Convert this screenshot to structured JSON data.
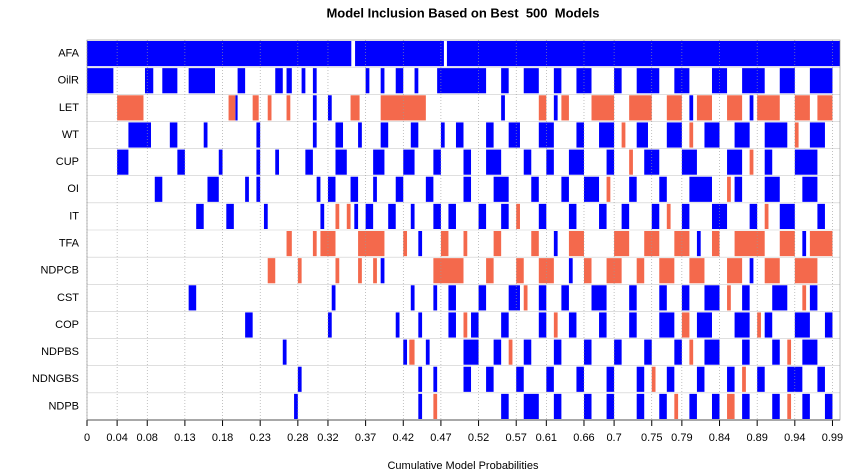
{
  "chart_data": {
    "type": "model-inclusion",
    "title": "Model Inclusion Based on Best  500  Models",
    "xlabel": "Cumulative Model Probabilities",
    "xlim": [
      0,
      1
    ],
    "xticks": [
      0,
      0.04,
      0.08,
      0.13,
      0.18,
      0.23,
      0.28,
      0.32,
      0.37,
      0.42,
      0.47,
      0.52,
      0.57,
      0.61,
      0.66,
      0.7,
      0.75,
      0.79,
      0.84,
      0.89,
      0.94,
      0.99
    ],
    "grid": true,
    "positive_color": "#0000ff",
    "negative_color": "#f4694c",
    "series": [
      {
        "name": "AFA",
        "positive": [
          [
            0,
            0.351
          ],
          [
            0.356,
            0.474
          ],
          [
            0.478,
            1
          ]
        ],
        "negative": []
      },
      {
        "name": "OilR",
        "positive": [
          [
            0,
            0.035
          ],
          [
            0.077,
            0.088
          ],
          [
            0.1,
            0.12
          ],
          [
            0.135,
            0.17
          ],
          [
            0.2,
            0.21
          ],
          [
            0.25,
            0.26
          ],
          [
            0.265,
            0.272
          ],
          [
            0.285,
            0.29
          ],
          [
            0.3,
            0.305
          ],
          [
            0.37,
            0.375
          ],
          [
            0.39,
            0.395
          ],
          [
            0.41,
            0.42
          ],
          [
            0.435,
            0.44
          ],
          [
            0.465,
            0.53
          ],
          [
            0.55,
            0.56
          ],
          [
            0.58,
            0.6
          ],
          [
            0.62,
            0.63
          ],
          [
            0.65,
            0.67
          ],
          [
            0.7,
            0.71
          ],
          [
            0.73,
            0.76
          ],
          [
            0.78,
            0.8
          ],
          [
            0.83,
            0.85
          ],
          [
            0.87,
            0.9
          ],
          [
            0.92,
            0.94
          ],
          [
            0.96,
            0.99
          ]
        ],
        "negative": []
      },
      {
        "name": "LET",
        "positive": [
          [
            0.197,
            0.2
          ],
          [
            0.3,
            0.305
          ],
          [
            0.32,
            0.325
          ],
          [
            0.55,
            0.555
          ],
          [
            0.62,
            0.625
          ],
          [
            0.8,
            0.805
          ],
          [
            0.88,
            0.885
          ]
        ],
        "negative": [
          [
            0.04,
            0.075
          ],
          [
            0.188,
            0.197
          ],
          [
            0.22,
            0.228
          ],
          [
            0.24,
            0.245
          ],
          [
            0.265,
            0.27
          ],
          [
            0.35,
            0.362
          ],
          [
            0.39,
            0.45
          ],
          [
            0.6,
            0.61
          ],
          [
            0.63,
            0.64
          ],
          [
            0.67,
            0.7
          ],
          [
            0.72,
            0.75
          ],
          [
            0.77,
            0.79
          ],
          [
            0.81,
            0.83
          ],
          [
            0.85,
            0.87
          ],
          [
            0.89,
            0.92
          ],
          [
            0.94,
            0.96
          ],
          [
            0.97,
            0.99
          ]
        ]
      },
      {
        "name": "WT",
        "positive": [
          [
            0.055,
            0.085
          ],
          [
            0.11,
            0.12
          ],
          [
            0.155,
            0.16
          ],
          [
            0.225,
            0.23
          ],
          [
            0.3,
            0.305
          ],
          [
            0.33,
            0.34
          ],
          [
            0.36,
            0.365
          ],
          [
            0.39,
            0.4
          ],
          [
            0.43,
            0.44
          ],
          [
            0.47,
            0.475
          ],
          [
            0.49,
            0.5
          ],
          [
            0.53,
            0.54
          ],
          [
            0.56,
            0.575
          ],
          [
            0.6,
            0.62
          ],
          [
            0.65,
            0.66
          ],
          [
            0.68,
            0.7
          ],
          [
            0.73,
            0.745
          ],
          [
            0.77,
            0.79
          ],
          [
            0.82,
            0.84
          ],
          [
            0.86,
            0.88
          ],
          [
            0.9,
            0.93
          ],
          [
            0.96,
            0.98
          ]
        ],
        "negative": [
          [
            0.71,
            0.715
          ],
          [
            0.8,
            0.805
          ],
          [
            0.94,
            0.945
          ]
        ]
      },
      {
        "name": "CUP",
        "positive": [
          [
            0.04,
            0.055
          ],
          [
            0.12,
            0.13
          ],
          [
            0.175,
            0.18
          ],
          [
            0.225,
            0.23
          ],
          [
            0.25,
            0.255
          ],
          [
            0.29,
            0.3
          ],
          [
            0.33,
            0.345
          ],
          [
            0.38,
            0.395
          ],
          [
            0.42,
            0.435
          ],
          [
            0.46,
            0.47
          ],
          [
            0.5,
            0.51
          ],
          [
            0.53,
            0.55
          ],
          [
            0.58,
            0.59
          ],
          [
            0.61,
            0.62
          ],
          [
            0.64,
            0.66
          ],
          [
            0.69,
            0.7
          ],
          [
            0.74,
            0.76
          ],
          [
            0.79,
            0.81
          ],
          [
            0.85,
            0.87
          ],
          [
            0.9,
            0.91
          ],
          [
            0.94,
            0.97
          ]
        ],
        "negative": [
          [
            0.72,
            0.725
          ],
          [
            0.88,
            0.885
          ]
        ]
      },
      {
        "name": "OI",
        "positive": [
          [
            0.09,
            0.1
          ],
          [
            0.16,
            0.175
          ],
          [
            0.21,
            0.215
          ],
          [
            0.225,
            0.23
          ],
          [
            0.305,
            0.31
          ],
          [
            0.32,
            0.33
          ],
          [
            0.35,
            0.36
          ],
          [
            0.38,
            0.385
          ],
          [
            0.41,
            0.42
          ],
          [
            0.45,
            0.46
          ],
          [
            0.5,
            0.51
          ],
          [
            0.54,
            0.56
          ],
          [
            0.59,
            0.6
          ],
          [
            0.63,
            0.64
          ],
          [
            0.66,
            0.68
          ],
          [
            0.72,
            0.73
          ],
          [
            0.76,
            0.77
          ],
          [
            0.8,
            0.83
          ],
          [
            0.86,
            0.87
          ],
          [
            0.9,
            0.92
          ],
          [
            0.95,
            0.97
          ]
        ],
        "negative": [
          [
            0.69,
            0.695
          ],
          [
            0.85,
            0.855
          ]
        ]
      },
      {
        "name": "IT",
        "positive": [
          [
            0.145,
            0.155
          ],
          [
            0.185,
            0.195
          ],
          [
            0.235,
            0.24
          ],
          [
            0.31,
            0.315
          ],
          [
            0.355,
            0.36
          ],
          [
            0.37,
            0.38
          ],
          [
            0.4,
            0.41
          ],
          [
            0.43,
            0.435
          ],
          [
            0.46,
            0.47
          ],
          [
            0.48,
            0.49
          ],
          [
            0.52,
            0.53
          ],
          [
            0.55,
            0.56
          ],
          [
            0.6,
            0.61
          ],
          [
            0.64,
            0.65
          ],
          [
            0.68,
            0.69
          ],
          [
            0.71,
            0.72
          ],
          [
            0.75,
            0.76
          ],
          [
            0.79,
            0.8
          ],
          [
            0.83,
            0.85
          ],
          [
            0.88,
            0.89
          ],
          [
            0.92,
            0.94
          ],
          [
            0.97,
            0.98
          ]
        ],
        "negative": [
          [
            0.33,
            0.335
          ],
          [
            0.345,
            0.35
          ],
          [
            0.57,
            0.575
          ],
          [
            0.77,
            0.775
          ],
          [
            0.9,
            0.905
          ]
        ]
      },
      {
        "name": "TFA",
        "positive": [
          [
            0.44,
            0.445
          ],
          [
            0.62,
            0.625
          ],
          [
            0.81,
            0.815
          ],
          [
            0.95,
            0.955
          ]
        ],
        "negative": [
          [
            0.265,
            0.272
          ],
          [
            0.3,
            0.305
          ],
          [
            0.31,
            0.33
          ],
          [
            0.36,
            0.395
          ],
          [
            0.42,
            0.425
          ],
          [
            0.47,
            0.48
          ],
          [
            0.5,
            0.505
          ],
          [
            0.54,
            0.55
          ],
          [
            0.59,
            0.6
          ],
          [
            0.64,
            0.66
          ],
          [
            0.7,
            0.72
          ],
          [
            0.74,
            0.76
          ],
          [
            0.78,
            0.8
          ],
          [
            0.83,
            0.84
          ],
          [
            0.86,
            0.9
          ],
          [
            0.92,
            0.94
          ],
          [
            0.96,
            0.99
          ]
        ]
      },
      {
        "name": "NDPCB",
        "positive": [
          [
            0.39,
            0.395
          ],
          [
            0.64,
            0.645
          ],
          [
            0.88,
            0.885
          ]
        ],
        "negative": [
          [
            0.24,
            0.25
          ],
          [
            0.28,
            0.285
          ],
          [
            0.33,
            0.335
          ],
          [
            0.36,
            0.365
          ],
          [
            0.38,
            0.385
          ],
          [
            0.46,
            0.5
          ],
          [
            0.53,
            0.54
          ],
          [
            0.57,
            0.58
          ],
          [
            0.6,
            0.62
          ],
          [
            0.66,
            0.67
          ],
          [
            0.69,
            0.71
          ],
          [
            0.73,
            0.74
          ],
          [
            0.76,
            0.78
          ],
          [
            0.8,
            0.82
          ],
          [
            0.85,
            0.87
          ],
          [
            0.9,
            0.92
          ],
          [
            0.94,
            0.97
          ]
        ]
      },
      {
        "name": "CST",
        "positive": [
          [
            0.135,
            0.145
          ],
          [
            0.325,
            0.33
          ],
          [
            0.43,
            0.435
          ],
          [
            0.46,
            0.465
          ],
          [
            0.48,
            0.49
          ],
          [
            0.52,
            0.53
          ],
          [
            0.56,
            0.575
          ],
          [
            0.6,
            0.61
          ],
          [
            0.63,
            0.64
          ],
          [
            0.67,
            0.69
          ],
          [
            0.72,
            0.73
          ],
          [
            0.76,
            0.77
          ],
          [
            0.79,
            0.8
          ],
          [
            0.82,
            0.84
          ],
          [
            0.87,
            0.88
          ],
          [
            0.91,
            0.93
          ],
          [
            0.96,
            0.97
          ]
        ],
        "negative": [
          [
            0.58,
            0.585
          ],
          [
            0.85,
            0.855
          ],
          [
            0.95,
            0.955
          ]
        ]
      },
      {
        "name": "COP",
        "positive": [
          [
            0.21,
            0.22
          ],
          [
            0.32,
            0.325
          ],
          [
            0.41,
            0.415
          ],
          [
            0.44,
            0.445
          ],
          [
            0.48,
            0.49
          ],
          [
            0.51,
            0.52
          ],
          [
            0.55,
            0.56
          ],
          [
            0.6,
            0.61
          ],
          [
            0.64,
            0.65
          ],
          [
            0.68,
            0.69
          ],
          [
            0.72,
            0.73
          ],
          [
            0.76,
            0.78
          ],
          [
            0.81,
            0.83
          ],
          [
            0.86,
            0.88
          ],
          [
            0.9,
            0.91
          ],
          [
            0.94,
            0.96
          ],
          [
            0.98,
            0.99
          ]
        ],
        "negative": [
          [
            0.5,
            0.505
          ],
          [
            0.62,
            0.625
          ],
          [
            0.79,
            0.8
          ],
          [
            0.89,
            0.895
          ]
        ]
      },
      {
        "name": "NDPBS",
        "positive": [
          [
            0.26,
            0.265
          ],
          [
            0.42,
            0.425
          ],
          [
            0.45,
            0.455
          ],
          [
            0.5,
            0.52
          ],
          [
            0.54,
            0.55
          ],
          [
            0.58,
            0.59
          ],
          [
            0.62,
            0.63
          ],
          [
            0.66,
            0.67
          ],
          [
            0.7,
            0.71
          ],
          [
            0.74,
            0.75
          ],
          [
            0.78,
            0.79
          ],
          [
            0.82,
            0.84
          ],
          [
            0.87,
            0.88
          ],
          [
            0.91,
            0.92
          ],
          [
            0.95,
            0.97
          ]
        ],
        "negative": [
          [
            0.428,
            0.435
          ],
          [
            0.56,
            0.565
          ],
          [
            0.8,
            0.805
          ],
          [
            0.93,
            0.935
          ]
        ]
      },
      {
        "name": "NDNGBS",
        "positive": [
          [
            0.28,
            0.285
          ],
          [
            0.44,
            0.445
          ],
          [
            0.46,
            0.465
          ],
          [
            0.5,
            0.51
          ],
          [
            0.53,
            0.54
          ],
          [
            0.57,
            0.58
          ],
          [
            0.61,
            0.62
          ],
          [
            0.65,
            0.66
          ],
          [
            0.69,
            0.7
          ],
          [
            0.73,
            0.74
          ],
          [
            0.77,
            0.78
          ],
          [
            0.81,
            0.82
          ],
          [
            0.85,
            0.86
          ],
          [
            0.89,
            0.9
          ],
          [
            0.93,
            0.95
          ],
          [
            0.97,
            0.98
          ]
        ],
        "negative": [
          [
            0.75,
            0.755
          ],
          [
            0.87,
            0.875
          ]
        ]
      },
      {
        "name": "NDPB",
        "positive": [
          [
            0.275,
            0.28
          ],
          [
            0.44,
            0.445
          ],
          [
            0.55,
            0.56
          ],
          [
            0.58,
            0.6
          ],
          [
            0.62,
            0.63
          ],
          [
            0.66,
            0.67
          ],
          [
            0.69,
            0.7
          ],
          [
            0.73,
            0.74
          ],
          [
            0.76,
            0.77
          ],
          [
            0.8,
            0.81
          ],
          [
            0.83,
            0.84
          ],
          [
            0.87,
            0.88
          ],
          [
            0.91,
            0.92
          ],
          [
            0.95,
            0.96
          ],
          [
            0.98,
            0.99
          ]
        ],
        "negative": [
          [
            0.46,
            0.465
          ],
          [
            0.78,
            0.785
          ],
          [
            0.85,
            0.86
          ],
          [
            0.93,
            0.935
          ]
        ]
      }
    ]
  }
}
